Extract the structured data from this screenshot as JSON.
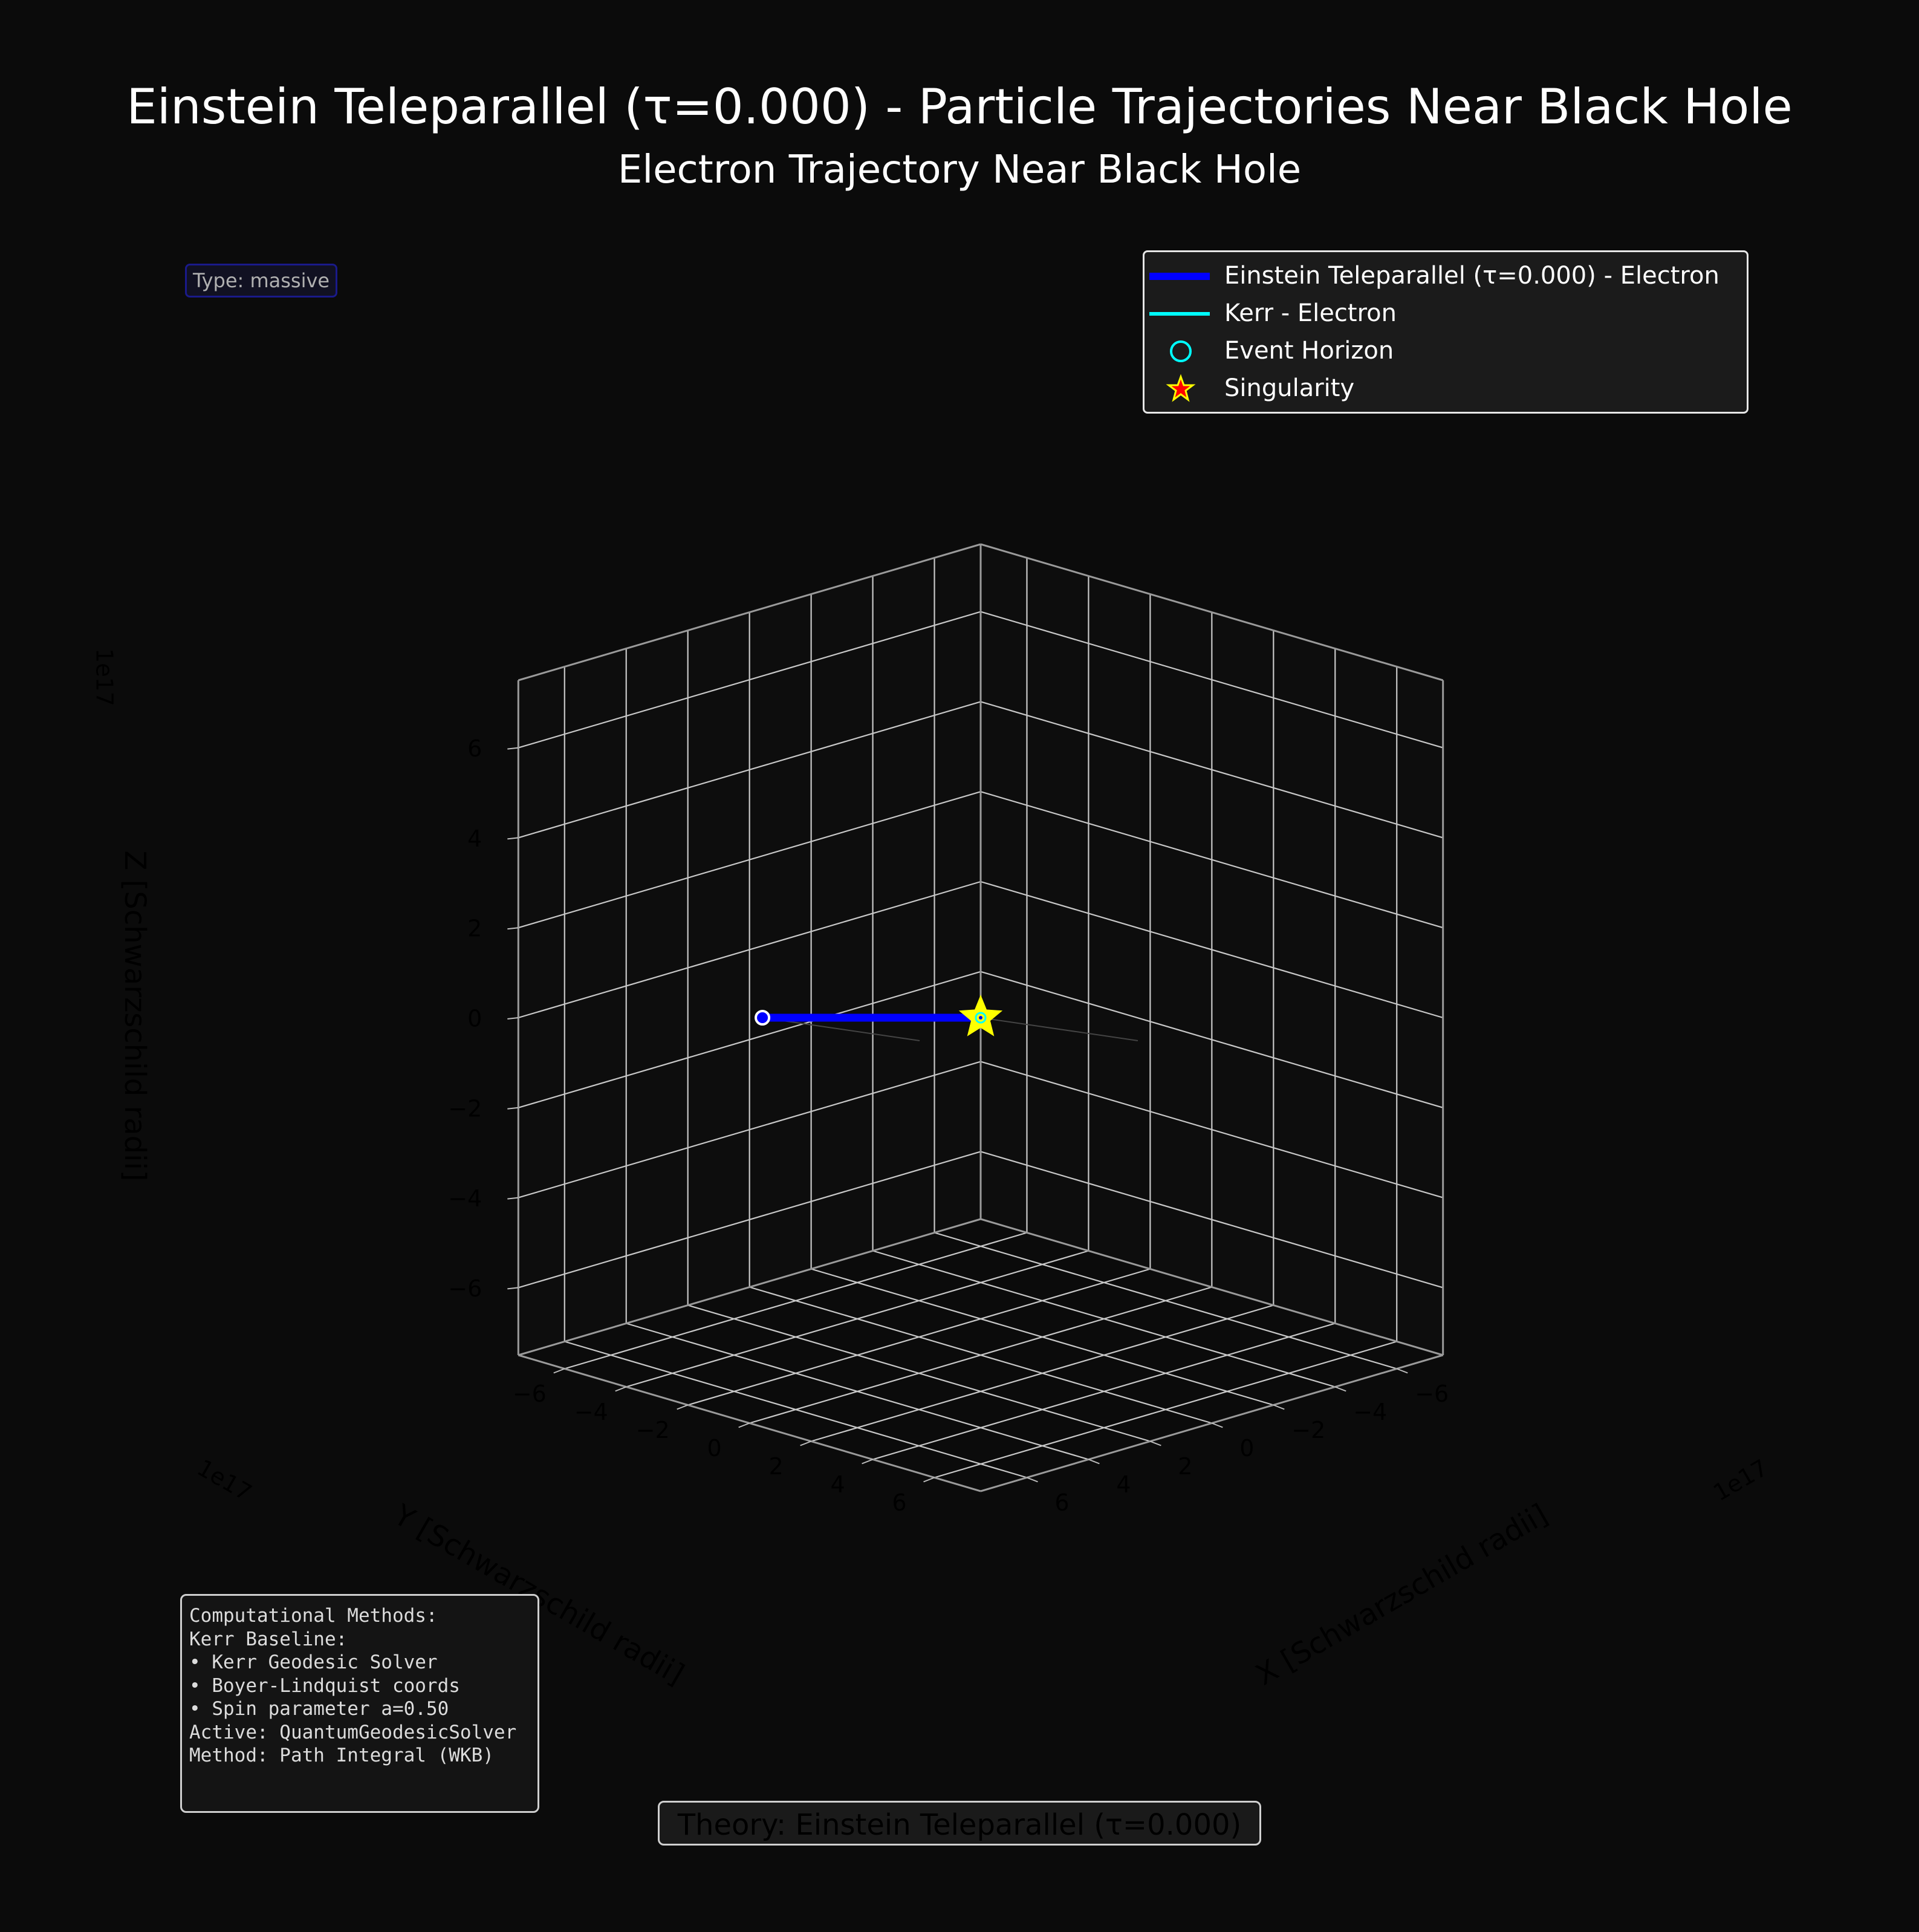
{
  "figure": {
    "title": "Einstein Teleparallel (τ=0.000) - Particle Trajectories Near Black Hole",
    "subtitle": "Electron Trajectory Near Black Hole",
    "type_badge": "Type: massive",
    "theory_box": "Theory: Einstein Teleparallel (τ=0.000)",
    "methods_box": {
      "lines": [
        "Computational Methods:",
        "",
        "Kerr Baseline:",
        "• Kerr Geodesic Solver",
        "• Boyer-Lindquist coords",
        "• Spin parameter a=0.50",
        "",
        "Active: QuantumGeodesicSolver",
        "Method: Path Integral (WKB)"
      ]
    },
    "colors": {
      "background": "#0b0b0b",
      "einstein_trajectory": "#0000ff",
      "kerr_trajectory": "#00ffff",
      "event_horizon": "#00ffff",
      "singularity_fill": "#ffff00",
      "singularity_edge": "#ff0000",
      "grid": "#c8c8c8"
    }
  },
  "chart_data": {
    "type": "line3d",
    "title": "Electron Trajectory Near Black Hole",
    "xlabel": "X [Schwarzschild radii]",
    "ylabel": "Y [Schwarzschild radii]",
    "zlabel": "Z [Schwarzschild radii]",
    "axis_offset": "1e17",
    "xlim": [
      -7.5,
      7.5
    ],
    "ylim": [
      -7.5,
      7.5
    ],
    "zlim": [
      -7.5,
      7.5
    ],
    "ticks": [
      -6,
      -4,
      -2,
      0,
      2,
      4,
      6
    ],
    "tick_labels": [
      "−6",
      "−4",
      "−2",
      "0",
      "2",
      "4",
      "6"
    ],
    "view": "elev 20°, azim 45°",
    "grid": true,
    "legend_position": "top-right",
    "legend": [
      {
        "label": "Einstein Teleparallel (τ=0.000) - Electron",
        "symbol": "thick-line",
        "color": "#0000ff"
      },
      {
        "label": "Kerr - Electron",
        "symbol": "line",
        "color": "#00ffff"
      },
      {
        "label": "Event Horizon",
        "symbol": "circle",
        "color": "#00ffff"
      },
      {
        "label": "Singularity",
        "symbol": "star",
        "color": "#ff0000"
      }
    ],
    "series": [
      {
        "name": "Einstein Teleparallel (τ=0.000) - Electron",
        "x": [
          0.0,
          3.54
        ],
        "y": [
          0.0,
          -3.54
        ],
        "z": [
          0.0,
          0.0
        ]
      }
    ],
    "start_point": {
      "x": 3.54,
      "y": -3.54,
      "z": 0.0
    },
    "singularity": {
      "x": 0.0,
      "y": 0.0,
      "z": 0.0
    },
    "event_horizon": {
      "x": 0.0,
      "y": 0.0,
      "z": 0.0
    }
  }
}
